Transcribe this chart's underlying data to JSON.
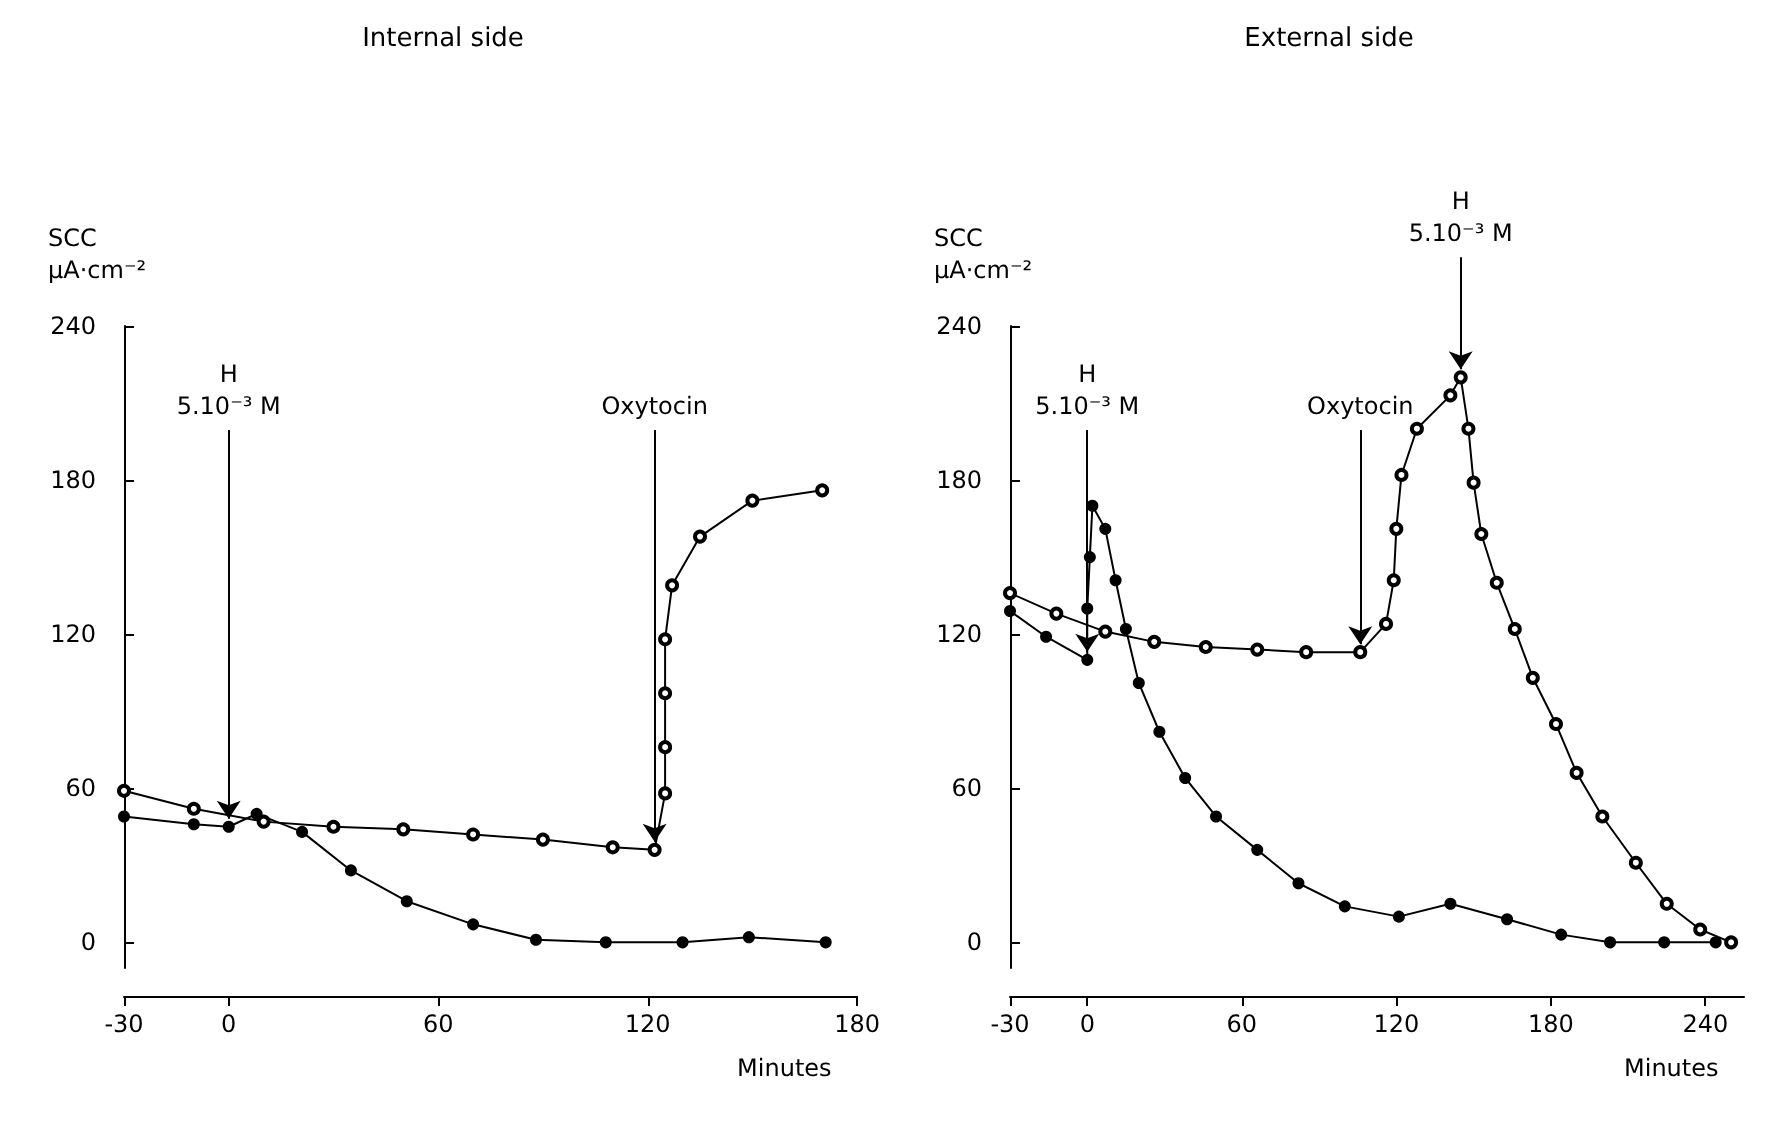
{
  "chart_data": [
    {
      "type": "line",
      "title": "Internal side",
      "ylabel": "SCC\nµA·cm⁻²",
      "xlabel": "Minutes",
      "xlim": [
        -30,
        180
      ],
      "xticks": [
        -30,
        0,
        60,
        120,
        180
      ],
      "ylim": [
        -10,
        240
      ],
      "yticks": [
        0,
        60,
        120,
        180,
        240
      ],
      "grid": false,
      "marker": "circle",
      "line_style": "solid",
      "series": [
        {
          "color": "#000000",
          "x": [
            -30,
            -10,
            10,
            30,
            50,
            70,
            90,
            110,
            122,
            125,
            125,
            125,
            125,
            127,
            135,
            150,
            170
          ],
          "values": [
            59,
            52,
            47,
            45,
            44,
            42,
            40,
            37,
            36,
            58,
            76,
            97,
            118,
            139,
            158,
            172,
            176
          ]
        },
        {
          "color": "#000000",
          "x": [
            -30,
            -10,
            0,
            8,
            21,
            35,
            51,
            70,
            88,
            108,
            130,
            149,
            171
          ],
          "values": [
            49,
            46,
            45,
            50,
            43,
            28,
            16,
            7,
            1,
            0,
            0,
            2,
            0
          ]
        }
      ],
      "annotations": [
        {
          "text": "H\n5.10⁻³ M",
          "x": 0,
          "y": 45
        },
        {
          "text": "Oxytocin",
          "x": 122,
          "y": 36
        }
      ]
    },
    {
      "type": "line",
      "title": "External side",
      "ylabel": "SCC\nµA·cm⁻²",
      "xlabel": "Minutes",
      "xlim": [
        -30,
        255
      ],
      "xticks": [
        -30,
        0,
        60,
        120,
        180,
        240
      ],
      "ylim": [
        -10,
        240
      ],
      "yticks": [
        0,
        60,
        120,
        180,
        240
      ],
      "grid": false,
      "marker": "circle",
      "line_style": "solid",
      "series": [
        {
          "color": "#000000",
          "x": [
            -30,
            -12,
            7,
            26,
            46,
            66,
            85,
            106,
            116,
            119,
            120,
            122,
            128,
            141,
            145,
            148,
            150,
            153,
            159,
            166,
            173,
            182,
            190,
            200,
            213,
            225,
            238,
            250
          ],
          "values": [
            136,
            128,
            121,
            117,
            115,
            114,
            113,
            113,
            124,
            141,
            161,
            182,
            200,
            213,
            220,
            200,
            179,
            159,
            140,
            122,
            103,
            85,
            66,
            49,
            31,
            15,
            5,
            0
          ]
        },
        {
          "color": "#000000",
          "x": [
            -30,
            -16,
            0,
            0,
            1,
            2,
            7,
            11,
            15,
            20,
            28,
            38,
            50,
            66,
            82,
            100,
            121,
            141,
            163,
            184,
            203,
            224,
            244
          ],
          "values": [
            129,
            119,
            110,
            130,
            150,
            170,
            161,
            141,
            122,
            101,
            82,
            64,
            49,
            36,
            23,
            14,
            10,
            15,
            9,
            3,
            0,
            0,
            0
          ]
        }
      ],
      "annotations": [
        {
          "text": "H\n5.10⁻³ M",
          "x": 0,
          "y": 110
        },
        {
          "text": "Oxytocin",
          "x": 106,
          "y": 113
        },
        {
          "text": "H\n5.10⁻³ M",
          "x": 145,
          "y": 220
        }
      ]
    }
  ]
}
